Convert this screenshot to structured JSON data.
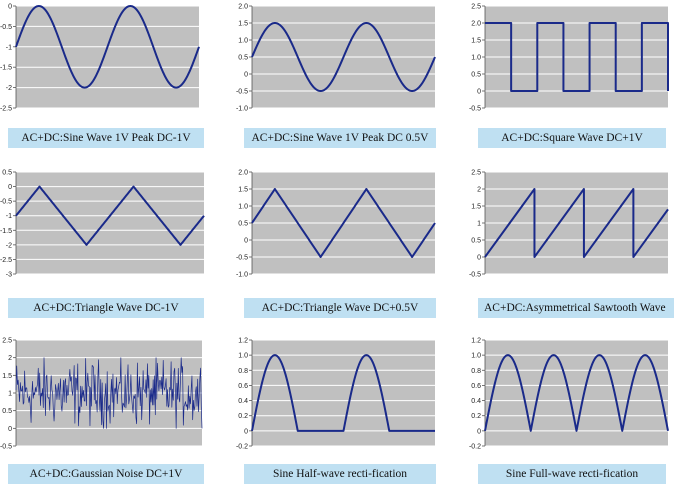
{
  "style": {
    "plot_bg": "#c0c0c0",
    "grid": "#ffffff",
    "line": "#1a2a8a",
    "caption_bg": "#bfe0f2"
  },
  "chart_data": [
    {
      "type": "line",
      "caption": "AC+DC:Sine Wave 1V Peak DC-1V",
      "ylim": [
        -2.5,
        0
      ],
      "ticks": [
        "0",
        "-0.5",
        "-1",
        "-1.5",
        "-2",
        "-2.5"
      ],
      "tick_values": [
        0,
        -0.5,
        -1,
        -1.5,
        -2,
        -2.5
      ],
      "series": [
        {
          "waveform": "sine",
          "amplitude": 1,
          "offset": -1,
          "cycles": 2,
          "phase_deg": 0
        }
      ]
    },
    {
      "type": "line",
      "caption": "AC+DC:Sine Wave 1V Peak DC 0.5V",
      "ylim": [
        -1.0,
        2.0
      ],
      "ticks": [
        "2.0",
        "1.5",
        "1.0",
        "0.5",
        "0",
        "-0.5",
        "-1.0"
      ],
      "tick_values": [
        2,
        1.5,
        1,
        0.5,
        0,
        -0.5,
        -1
      ],
      "series": [
        {
          "waveform": "sine",
          "amplitude": 1,
          "offset": 0.5,
          "cycles": 2,
          "phase_deg": 0
        }
      ]
    },
    {
      "type": "line",
      "caption": "AC+DC:Square Wave DC+1V",
      "ylim": [
        -0.5,
        2.5
      ],
      "ticks": [
        "2.5",
        "2.0",
        "1.5",
        "1.0",
        "0.5",
        "0",
        "-0.5"
      ],
      "tick_values": [
        2.5,
        2,
        1.5,
        1,
        0.5,
        0,
        -0.5
      ],
      "series": [
        {
          "waveform": "square",
          "low": 0,
          "high": 2,
          "cycles": 3.5
        }
      ]
    },
    {
      "type": "line",
      "caption": "AC+DC:Triangle Wave DC-1V",
      "ylim": [
        -3,
        0.5
      ],
      "ticks": [
        "0.5",
        "0",
        "-0.5",
        "-1",
        "-1.5",
        "-2",
        "-2.5",
        "-3"
      ],
      "tick_values": [
        0.5,
        0,
        -0.5,
        -1,
        -1.5,
        -2,
        -2.5,
        -3
      ],
      "series": [
        {
          "waveform": "triangle",
          "amplitude": 1,
          "offset": -1,
          "cycles": 2
        }
      ]
    },
    {
      "type": "line",
      "caption": "AC+DC:Triangle Wave DC+0.5V",
      "ylim": [
        -1.0,
        2.0
      ],
      "ticks": [
        "2.0",
        "1.5",
        "1.0",
        "0.5",
        "0",
        "-0.5",
        "-1.0"
      ],
      "tick_values": [
        2,
        1.5,
        1,
        0.5,
        0,
        -0.5,
        -1
      ],
      "series": [
        {
          "waveform": "triangle",
          "amplitude": 1,
          "offset": 0.5,
          "cycles": 2
        }
      ]
    },
    {
      "type": "line",
      "caption": "AC+DC:Asymmetrical Sawtooth Wave",
      "ylim": [
        -0.5,
        2.5
      ],
      "ticks": [
        "2.5",
        "2",
        "1.5",
        "1",
        "0.5",
        "0",
        "-0.5"
      ],
      "tick_values": [
        2.5,
        2,
        1.5,
        1,
        0.5,
        0,
        -0.5
      ],
      "series": [
        {
          "waveform": "sawtooth",
          "low": 0,
          "high": 2,
          "cycles": 3.7
        }
      ]
    },
    {
      "type": "line",
      "caption": "AC+DC:Gaussian Noise DC+1V",
      "ylim": [
        -0.5,
        2.5
      ],
      "ticks": [
        "2.5",
        "2",
        "1.5",
        "1",
        "0.5",
        "0",
        "-0.5"
      ],
      "tick_values": [
        2.5,
        2,
        1.5,
        1,
        0.5,
        0,
        -0.5
      ],
      "series": [
        {
          "waveform": "noise",
          "mean": 1,
          "spread": 0.45,
          "min": 0,
          "max": 2,
          "samples": 260
        }
      ]
    },
    {
      "type": "line",
      "caption": "Sine Half-wave recti-fication",
      "ylim": [
        -0.2,
        1.2
      ],
      "ticks": [
        "1.2",
        "1.0",
        "0.8",
        "0.6",
        "0.4",
        "0.2",
        "0",
        "-0.2"
      ],
      "tick_values": [
        1.2,
        1,
        0.8,
        0.6,
        0.4,
        0.2,
        0,
        -0.2
      ],
      "series": [
        {
          "waveform": "half_rect",
          "amplitude": 1,
          "cycles": 2
        }
      ]
    },
    {
      "type": "line",
      "caption": "Sine Full-wave recti-fication",
      "ylim": [
        -0.2,
        1.2
      ],
      "ticks": [
        "1.2",
        "1.0",
        "0.8",
        "0.6",
        "0.4",
        "0.2",
        "0",
        "-0.2"
      ],
      "tick_values": [
        1.2,
        1,
        0.8,
        0.6,
        0.4,
        0.2,
        0,
        -0.2
      ],
      "series": [
        {
          "waveform": "full_rect",
          "amplitude": 1,
          "cycles": 2
        }
      ]
    }
  ]
}
